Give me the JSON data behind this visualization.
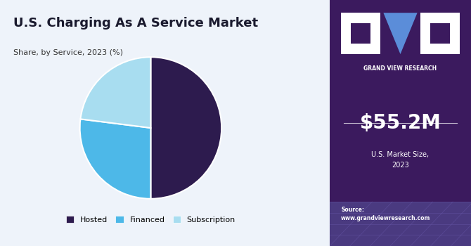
{
  "title": "U.S. Charging As A Service Market",
  "subtitle": "Share, by Service, 2023 (%)",
  "pie_values": [
    50,
    27,
    23
  ],
  "pie_labels": [
    "Hosted",
    "Financed",
    "Subscription"
  ],
  "pie_colors": [
    "#2d1b4e",
    "#4db8e8",
    "#a8ddf0"
  ],
  "background_left": "#eef3fa",
  "background_right": "#3b1a5e",
  "market_size": "$55.2M",
  "market_label": "U.S. Market Size,\n2023",
  "source_text": "Source:\nwww.grandviewresearch.com",
  "logo_text": "GRAND VIEW RESEARCH",
  "title_color": "#1a1a2e",
  "subtitle_color": "#333333"
}
